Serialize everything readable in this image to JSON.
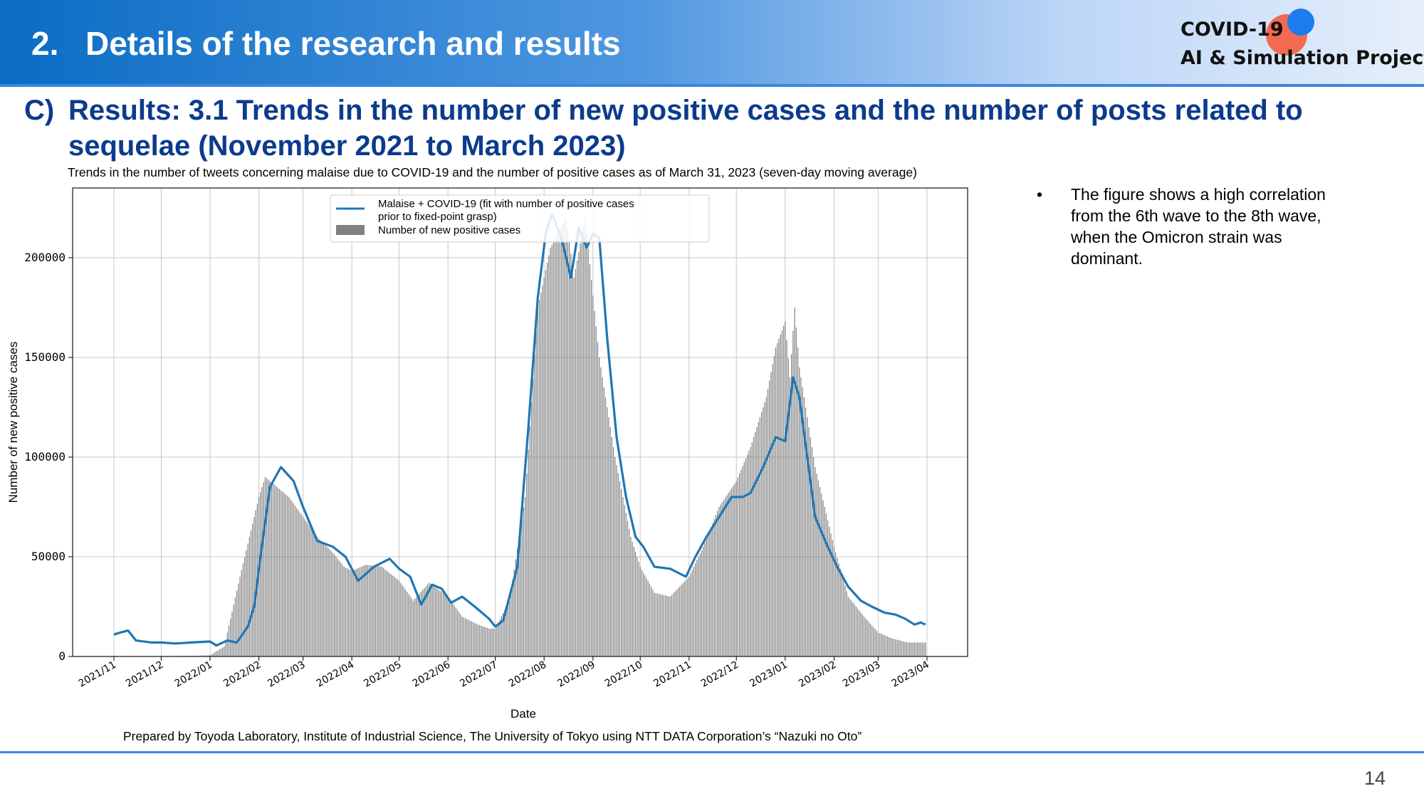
{
  "header": {
    "number": "2.",
    "title": "Details of the research and results",
    "logo_line1": "COVID-19",
    "logo_line2": "AI & Simulation Project"
  },
  "section": {
    "marker": "C)",
    "title": "Results: 3.1 Trends in the number of new positive cases and the number of posts related to sequelae (November 2021 to March 2023)"
  },
  "figure_caption": "Trends in the number of tweets concerning malaise due to COVID-19 and the number of positive cases as of March 31, 2023 (seven-day moving average)",
  "bullet": {
    "marker": "•",
    "text": "The figure shows a high correlation from the 6th wave to the 8th wave, when the Omicron strain was dominant."
  },
  "source_note": "Prepared by Toyoda Laboratory, Institute of Industrial Science, The University of Tokyo using NTT DATA Corporation’s “Nazuki no Oto”",
  "page_number": "14",
  "colors": {
    "line": "#1f77b4",
    "bars": "#808080",
    "title": "#0b3b8c",
    "accent": "#3a86e0"
  },
  "chart_data": {
    "type": "bar",
    "xlabel": "Date",
    "ylabel": "Number of new positive cases",
    "ylim": [
      0,
      235000
    ],
    "yticks": [
      0,
      50000,
      100000,
      150000,
      200000
    ],
    "xtick_labels": [
      "2021/11",
      "2021/12",
      "2022/01",
      "2022/02",
      "2022/03",
      "2022/04",
      "2022/05",
      "2022/06",
      "2022/07",
      "2022/08",
      "2022/09",
      "2022/10",
      "2022/11",
      "2022/12",
      "2023/01",
      "2023/02",
      "2023/03",
      "2023/04"
    ],
    "grid": true,
    "legend": {
      "placement": "upper center",
      "line_label": "Malaise + COVID-19 (fit with number of positive cases prior to fixed-point grasp)",
      "line_label_1": "Malaise + COVID-19 (fit with number of positive cases",
      "line_label_2": "prior to fixed-point grasp)",
      "bar_label": "Number of new positive cases"
    },
    "bars": {
      "name": "Number of new positive cases",
      "dates": [
        "2021-11-01",
        "2021-12-01",
        "2021-12-25",
        "2022-01-01",
        "2022-01-10",
        "2022-01-20",
        "2022-02-01",
        "2022-02-05",
        "2022-02-20",
        "2022-03-01",
        "2022-03-10",
        "2022-03-20",
        "2022-03-27",
        "2022-04-01",
        "2022-04-10",
        "2022-04-20",
        "2022-05-01",
        "2022-05-10",
        "2022-05-20",
        "2022-06-01",
        "2022-06-10",
        "2022-06-20",
        "2022-06-27",
        "2022-07-01",
        "2022-07-10",
        "2022-07-20",
        "2022-07-28",
        "2022-08-05",
        "2022-08-15",
        "2022-08-20",
        "2022-08-27",
        "2022-09-05",
        "2022-09-15",
        "2022-09-25",
        "2022-10-01",
        "2022-10-10",
        "2022-10-20",
        "2022-11-01",
        "2022-11-10",
        "2022-11-20",
        "2022-12-01",
        "2022-12-10",
        "2022-12-20",
        "2022-12-26",
        "2023-01-01",
        "2023-01-04",
        "2023-01-07",
        "2023-01-10",
        "2023-01-20",
        "2023-02-01",
        "2023-02-10",
        "2023-02-20",
        "2023-03-01",
        "2023-03-10",
        "2023-03-20",
        "2023-03-31"
      ],
      "values": [
        200,
        150,
        400,
        600,
        5000,
        40000,
        80000,
        90000,
        80000,
        70000,
        60000,
        52000,
        45000,
        43000,
        46000,
        45000,
        38000,
        28000,
        37000,
        30000,
        20000,
        16000,
        14000,
        14000,
        28000,
        80000,
        175000,
        205000,
        220000,
        190000,
        220000,
        150000,
        100000,
        60000,
        45000,
        32000,
        30000,
        40000,
        55000,
        75000,
        88000,
        105000,
        130000,
        155000,
        168000,
        140000,
        175000,
        145000,
        95000,
        55000,
        30000,
        20000,
        12000,
        9000,
        7000,
        7000
      ]
    },
    "line": {
      "name": "Malaise + COVID-19 (fit with number of positive cases prior to fixed-point grasp)",
      "dates": [
        "2021-11-01",
        "2021-11-05",
        "2021-11-10",
        "2021-11-15",
        "2021-11-25",
        "2021-12-01",
        "2021-12-10",
        "2021-12-20",
        "2022-01-01",
        "2022-01-05",
        "2022-01-12",
        "2022-01-18",
        "2022-01-25",
        "2022-01-29",
        "2022-02-02",
        "2022-02-08",
        "2022-02-15",
        "2022-02-23",
        "2022-03-01",
        "2022-03-10",
        "2022-03-20",
        "2022-03-28",
        "2022-04-05",
        "2022-04-15",
        "2022-04-25",
        "2022-05-01",
        "2022-05-08",
        "2022-05-15",
        "2022-05-22",
        "2022-05-28",
        "2022-06-03",
        "2022-06-10",
        "2022-06-18",
        "2022-06-27",
        "2022-07-01",
        "2022-07-06",
        "2022-07-15",
        "2022-07-22",
        "2022-07-28",
        "2022-08-02",
        "2022-08-06",
        "2022-08-12",
        "2022-08-18",
        "2022-08-23",
        "2022-08-28",
        "2022-09-01",
        "2022-09-05",
        "2022-09-10",
        "2022-09-16",
        "2022-09-22",
        "2022-09-28",
        "2022-10-03",
        "2022-10-10",
        "2022-10-20",
        "2022-10-30",
        "2022-11-05",
        "2022-11-12",
        "2022-11-20",
        "2022-11-28",
        "2022-12-05",
        "2022-12-10",
        "2022-12-18",
        "2022-12-26",
        "2023-01-01",
        "2023-01-06",
        "2023-01-10",
        "2023-01-15",
        "2023-01-20",
        "2023-01-28",
        "2023-02-03",
        "2023-02-10",
        "2023-02-18",
        "2023-02-25",
        "2023-03-05",
        "2023-03-12",
        "2023-03-18",
        "2023-03-24",
        "2023-03-28",
        "2023-03-31"
      ],
      "values": [
        11000,
        12000,
        13000,
        8000,
        7000,
        7000,
        6500,
        7000,
        7500,
        5500,
        8000,
        7000,
        15000,
        25000,
        50000,
        85000,
        95000,
        88000,
        75000,
        58000,
        55000,
        50000,
        38000,
        45000,
        49000,
        44000,
        40000,
        26000,
        36000,
        34000,
        27000,
        30000,
        25000,
        19000,
        15000,
        18000,
        45000,
        115000,
        180000,
        212000,
        222000,
        210000,
        190000,
        215000,
        205000,
        212000,
        210000,
        160000,
        110000,
        80000,
        60000,
        55000,
        45000,
        44000,
        40000,
        50000,
        60000,
        70000,
        80000,
        80000,
        82000,
        95000,
        110000,
        108000,
        140000,
        130000,
        100000,
        70000,
        55000,
        45000,
        35000,
        28000,
        25000,
        22000,
        21000,
        19000,
        16000,
        17000,
        16000
      ]
    }
  }
}
